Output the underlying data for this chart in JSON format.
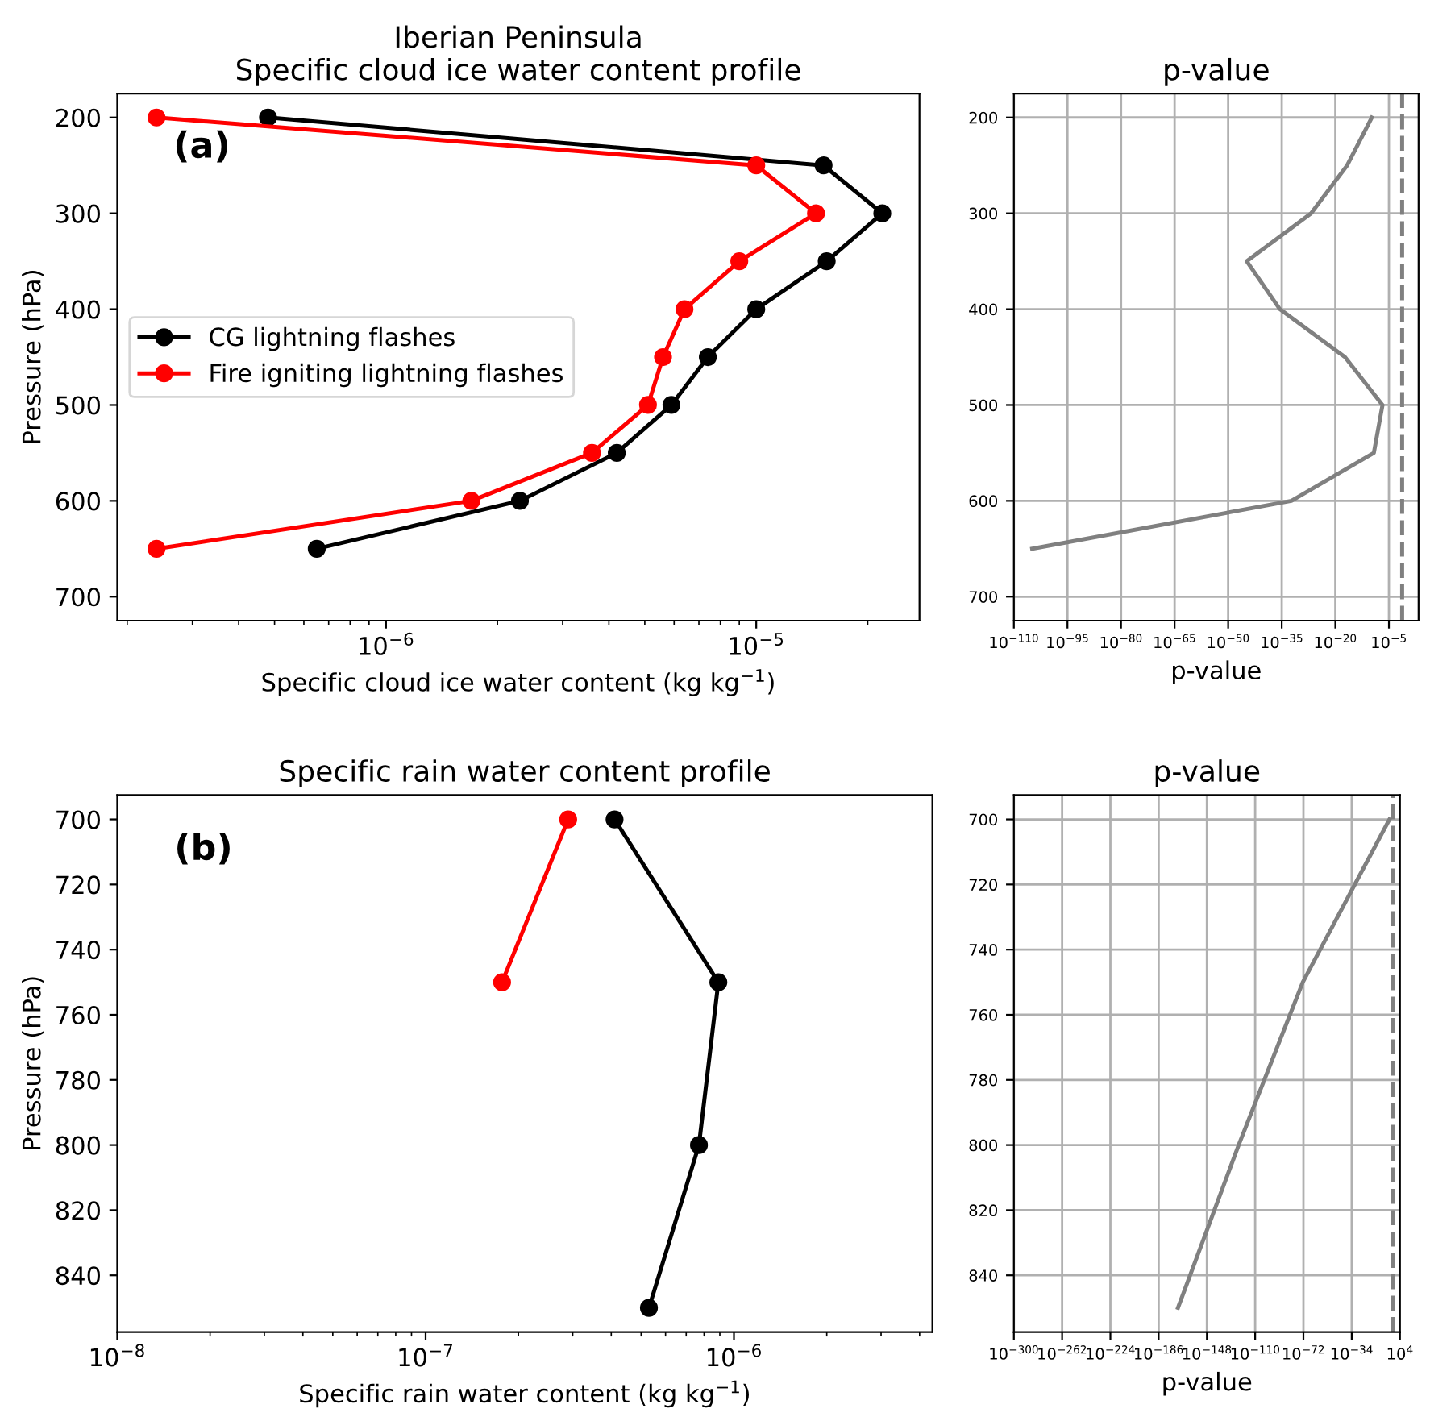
{
  "chart_data": [
    {
      "type": "line",
      "title": "Iberian Peninsula\nSpecific cloud ice water content profile",
      "xlabel": "Specific cloud ice water content (kg kg$^{−1}$)",
      "ylabel": "Pressure (hPa)",
      "log": "x",
      "marker": "circle",
      "legend": "left",
      "grid": false,
      "annotations": [
        "(a)"
      ],
      "xlim": [
        1.88e-07,
        2.76e-05
      ],
      "ylim": [
        725,
        175
      ],
      "xticks": [
        {
          "value": 1e-06,
          "label": "10$^{−6}$"
        },
        {
          "value": 1e-05,
          "label": "10$^{−5}$"
        }
      ],
      "yticks": [
        200,
        300,
        400,
        500,
        600,
        700
      ],
      "series": [
        {
          "name": "CG lightning flashes",
          "color": "#000000",
          "x": [
            4.8e-07,
            1.52e-05,
            2.19e-05,
            1.55e-05,
            1e-05,
            7.4e-06,
            5.9e-06,
            4.2e-06,
            2.3e-06,
            6.5e-07
          ],
          "values": [
            200,
            250,
            300,
            350,
            400,
            450,
            500,
            550,
            600,
            650
          ]
        },
        {
          "name": "Fire igniting lightning flashes",
          "color": "#ff0000",
          "x": [
            2.4e-07,
            1e-05,
            1.45e-05,
            9e-06,
            6.4e-06,
            5.6e-06,
            5.1e-06,
            3.6e-06,
            1.7e-06,
            2.4e-07
          ],
          "values": [
            200,
            250,
            300,
            350,
            400,
            450,
            500,
            550,
            600,
            650
          ]
        }
      ]
    },
    {
      "type": "line",
      "title": "p-value",
      "xlabel": "p-value",
      "log": "x",
      "marker": "none",
      "grid": true,
      "xlim": [
        1e-110,
        2000.0
      ],
      "ylim": [
        725,
        175
      ],
      "xticks": [
        {
          "value": 1e-110,
          "label": "10$^{−110}$"
        },
        {
          "value": 1e-95,
          "label": "10$^{−95}$"
        },
        {
          "value": 1e-80,
          "label": "10$^{−80}$"
        },
        {
          "value": 1e-65,
          "label": "10$^{−65}$"
        },
        {
          "value": 1e-50,
          "label": "10$^{−50}$"
        },
        {
          "value": 1e-35,
          "label": "10$^{−35}$"
        },
        {
          "value": 1e-20,
          "label": "10$^{−20}$"
        },
        {
          "value": 1e-05,
          "label": "10$^{−5}$"
        }
      ],
      "yticks": [
        200,
        300,
        400,
        500,
        600,
        700
      ],
      "ref_lines": [
        {
          "axis": "x",
          "value": 0.05,
          "color": "#808080",
          "line_style": "dashed"
        }
      ],
      "series": [
        {
          "color": "#808080",
          "x": [
            1.6e-10,
            2e-17,
            1.6e-27,
            1.6e-45,
            3e-36,
            5e-18,
            1.6e-07,
            6e-10,
            5e-33,
            1.3e-105
          ],
          "values": [
            200,
            250,
            300,
            350,
            400,
            450,
            500,
            550,
            600,
            650
          ]
        }
      ]
    },
    {
      "type": "line",
      "title": "Specific rain water content profile",
      "xlabel": "Specific rain water content (kg kg$^{−1}$)",
      "ylabel": "Pressure (hPa)",
      "log": "x",
      "marker": "circle",
      "grid": false,
      "annotations": [
        "(b)"
      ],
      "xlim": [
        1e-08,
        4.4e-06
      ],
      "ylim": [
        857.4,
        692.5
      ],
      "xticks": [
        {
          "value": 1e-08,
          "label": "10$^{−8}$"
        },
        {
          "value": 1e-07,
          "label": "10$^{−7}$"
        },
        {
          "value": 1e-06,
          "label": "10$^{−6}$"
        }
      ],
      "yticks": [
        700,
        720,
        740,
        760,
        780,
        800,
        820,
        840
      ],
      "series": [
        {
          "color": "#000000",
          "x": [
            4.1e-07,
            8.9e-07,
            7.7e-07,
            5.3e-07
          ],
          "values": [
            700,
            750,
            800,
            850
          ]
        },
        {
          "color": "#ff0000",
          "x": [
            2.9e-07,
            1.77e-07
          ],
          "values": [
            700,
            750
          ]
        }
      ]
    },
    {
      "type": "line",
      "title": "p-value",
      "xlabel": "p-value",
      "log": "x",
      "marker": "none",
      "grid": true,
      "xlim": [
        1e-300,
        10000.0
      ],
      "ylim": [
        857.4,
        692.5
      ],
      "xticks": [
        {
          "value": 1e-300,
          "label": "10$^{−300}$"
        },
        {
          "value": 1e-262,
          "label": "10$^{−262}$"
        },
        {
          "value": 1e-224,
          "label": "10$^{−224}$"
        },
        {
          "value": 1e-186,
          "label": "10$^{−186}$"
        },
        {
          "value": 1e-148,
          "label": "10$^{−148}$"
        },
        {
          "value": 1e-110,
          "label": "10$^{−110}$"
        },
        {
          "value": 1e-72,
          "label": "10$^{−72}$"
        },
        {
          "value": 1e-34,
          "label": "10$^{−34}$"
        },
        {
          "value": 10000.0,
          "label": "10$^{4}$"
        }
      ],
      "yticks": [
        700,
        720,
        740,
        760,
        780,
        800,
        820,
        840
      ],
      "ref_lines": [
        {
          "axis": "x",
          "value": 0.05,
          "color": "#808080",
          "line_style": "dashed"
        }
      ],
      "series": [
        {
          "color": "#808080",
          "x": [
            5e-05,
            3e-73,
            1e-123,
            1.6e-171
          ],
          "values": [
            700,
            750,
            800,
            850
          ]
        }
      ]
    }
  ]
}
